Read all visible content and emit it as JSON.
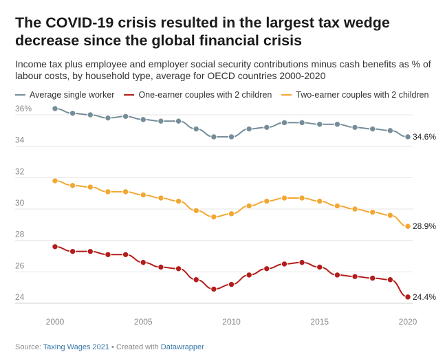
{
  "header": {
    "title": "The COVID-19 crisis resulted in the largest tax wedge decrease since the global financial crisis",
    "subtitle": "Income tax plus employee and employer social security contributions minus cash benefits as % of labour costs, by household type, average for OECD countries 2000-2020"
  },
  "footer": {
    "source_prefix": "Source: ",
    "source_link": "Taxing Wages 2021",
    "separator": " • Created with ",
    "tool_link": "Datawrapper"
  },
  "chart_data": {
    "type": "line",
    "x": [
      2000,
      2001,
      2002,
      2003,
      2004,
      2005,
      2006,
      2007,
      2008,
      2009,
      2010,
      2011,
      2012,
      2013,
      2014,
      2015,
      2016,
      2017,
      2018,
      2019,
      2020
    ],
    "series": [
      {
        "name": "Average single worker",
        "color": "#758d99",
        "values": [
          36.4,
          36.1,
          36.0,
          35.8,
          35.9,
          35.7,
          35.6,
          35.6,
          35.1,
          34.6,
          34.6,
          35.1,
          35.2,
          35.5,
          35.5,
          35.4,
          35.4,
          35.2,
          35.1,
          35.0,
          34.6
        ],
        "end_label": "34.6%"
      },
      {
        "name": "One-earner couples with 2 children",
        "color": "#b11e1b",
        "values": [
          27.6,
          27.3,
          27.3,
          27.1,
          27.1,
          26.6,
          26.3,
          26.2,
          25.5,
          24.9,
          25.2,
          25.8,
          26.2,
          26.5,
          26.6,
          26.3,
          25.8,
          25.7,
          25.6,
          25.5,
          24.4
        ],
        "end_label": "24.4%"
      },
      {
        "name": "Two-earner couples with 2 children",
        "color": "#f2a732",
        "values": [
          31.8,
          31.5,
          31.4,
          31.1,
          31.1,
          30.9,
          30.7,
          30.5,
          29.9,
          29.5,
          29.7,
          30.2,
          30.5,
          30.7,
          30.7,
          30.5,
          30.2,
          30.0,
          29.8,
          29.6,
          28.9
        ],
        "end_label": "28.9%"
      }
    ],
    "y_ticks": [
      "36%",
      "34",
      "32",
      "30",
      "28",
      "26",
      "24"
    ],
    "y_tick_values": [
      36,
      34,
      32,
      30,
      28,
      26,
      24
    ],
    "x_ticks": [
      "2000",
      "2005",
      "2010",
      "2015",
      "2020"
    ],
    "x_tick_values": [
      2000,
      2005,
      2010,
      2015,
      2020
    ],
    "ylim": [
      24,
      36
    ],
    "xlim": [
      2000,
      2020
    ],
    "grid": "horizontal",
    "legend_position": "top-left"
  }
}
